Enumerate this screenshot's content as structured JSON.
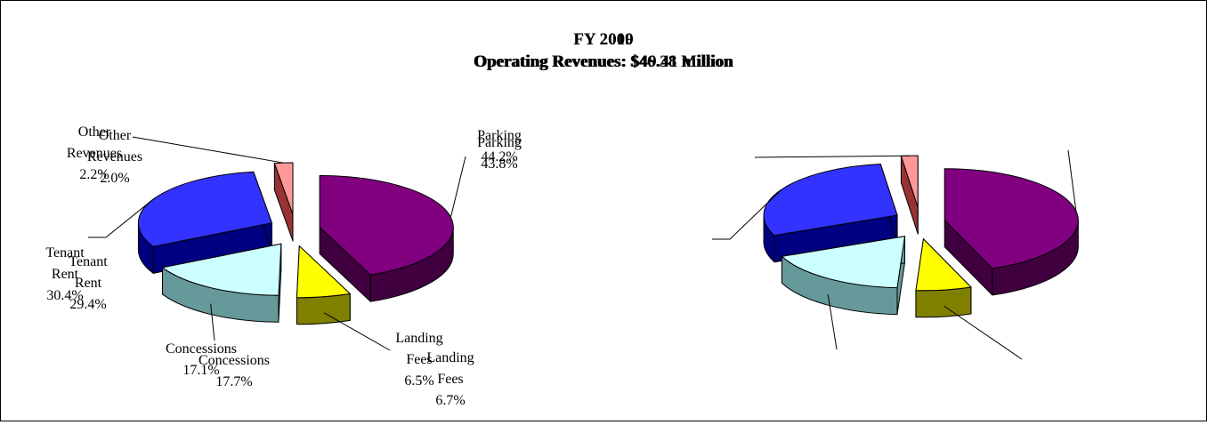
{
  "chart_data": [
    {
      "type": "pie",
      "title": "FY 2010",
      "subtitle": "Operating Revenues: $46.38 Million",
      "categories": [
        "Parking",
        "Landing Fees",
        "Concessions",
        "Tenant Rent",
        "Other Revenues"
      ],
      "values": [
        43.8,
        6.5,
        17.1,
        30.4,
        2.2
      ],
      "value_labels": [
        "43.8%",
        "6.5%",
        "17.1%",
        "30.4%",
        "2.2%"
      ],
      "colors": [
        "#800080",
        "#ffff00",
        "#ccffff",
        "#3333ff",
        "#ff9999"
      ]
    },
    {
      "type": "pie",
      "title": "FY 2009",
      "subtitle": "Operating Revenues: $49.41 million",
      "categories": [
        "Parking",
        "Landing Fees",
        "Concessions",
        "Tenant Rent",
        "Other Revenues"
      ],
      "values": [
        44.2,
        6.7,
        17.7,
        29.4,
        2.0
      ],
      "value_labels": [
        "44.2%",
        "6.7%",
        "17.7%",
        "29.4%",
        "2.0%"
      ],
      "colors": [
        "#800080",
        "#ffff00",
        "#ccffff",
        "#3333ff",
        "#ff9999"
      ]
    }
  ]
}
